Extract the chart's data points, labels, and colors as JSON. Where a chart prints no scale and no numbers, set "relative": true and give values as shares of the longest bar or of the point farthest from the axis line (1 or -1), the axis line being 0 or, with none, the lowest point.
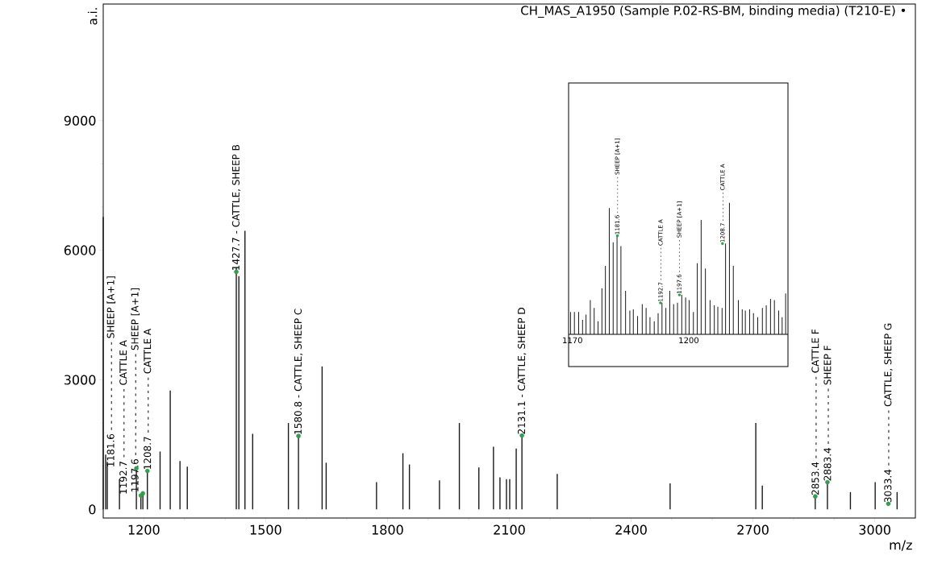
{
  "chart_data": [
    {
      "type": "bar",
      "title": "CH_MAS_A1950 (Sample P.02-RS-BM, binding media) (T210-E) •",
      "xlabel": "m/z",
      "ylabel": "a.i.",
      "xlim": [
        1100,
        3100
      ],
      "ylim": [
        -200,
        11700
      ],
      "xticks": [
        1200,
        1500,
        1800,
        2100,
        2400,
        2700,
        3000
      ],
      "yticks": [
        0,
        3000,
        6000,
        9000
      ],
      "marker": "circle",
      "series": [
        {
          "color": "#1a1a1a",
          "x": [
            1100,
            1106,
            1110,
            1140,
            1181.6,
            1192.7,
            1197.6,
            1208.7,
            1240,
            1265,
            1289,
            1307,
            1427.7,
            1434,
            1449,
            1468,
            1556,
            1580.8,
            1639,
            1649,
            1773,
            1838,
            1854,
            1928,
            1977,
            2025,
            2061,
            2077,
            2093,
            2101,
            2117,
            2131.1,
            2218,
            2496,
            2707,
            2723,
            2853.4,
            2883.4,
            2940,
            3001,
            3033.4,
            3055
          ],
          "values": [
            6770,
            1270,
            1100,
            700,
            950,
            320,
            370,
            890,
            1340,
            2750,
            1120,
            990,
            5600,
            5400,
            6450,
            1750,
            2000,
            1700,
            3310,
            1080,
            630,
            1300,
            1040,
            670,
            2000,
            970,
            1450,
            740,
            700,
            700,
            1410,
            1710,
            820,
            600,
            2000,
            550,
            300,
            630,
            400,
            630,
            null,
            400
          ]
        },
        {
          "type": "scatter",
          "color": "#2e9e4f",
          "x": [
            1181.6,
            1192.7,
            1197.6,
            1208.7,
            1427.7,
            1580.8,
            2131.1,
            2853.4,
            2883.4,
            3033.4
          ],
          "values": [
            950,
            320,
            370,
            890,
            5500,
            1700,
            1710,
            300,
            630,
            130
          ]
        }
      ],
      "annotations": [
        {
          "text": "1181.6 - - - - - - - - - - - - - - SHEEP [A+1]",
          "x": 1181.6,
          "y": 950
        },
        {
          "text": "1192.7 - - - - - - - - - - - CATTLE A",
          "x": 1192.7,
          "y": 320
        },
        {
          "text": "1197.6 - - - - - - - - - - - - - - - - SHEEP [A+1]",
          "x": 1197.6,
          "y": 370
        },
        {
          "text": "1208.7 - - - - - - - - - CATTLE A",
          "x": 1208.7,
          "y": 890
        },
        {
          "text": "1427.7 - CATTLE, SHEEP B",
          "x": 1427.7,
          "y": 5500
        },
        {
          "text": "1580.8 - CATTLE, SHEEP C",
          "x": 1580.8,
          "y": 1700
        },
        {
          "text": "2131.1 - CATTLE, SHEEP D",
          "x": 2131.1,
          "y": 1710
        },
        {
          "text": "2853.4 - - - - - - - - - - - - - CATTLE F",
          "x": 2853.4,
          "y": 300
        },
        {
          "text": "2883.4 - - - - - - - - - SHEEP F",
          "x": 2883.4,
          "y": 630
        },
        {
          "text": "3033.4 - - - - - - - - - CATTLE, SHEEP G",
          "x": 3033.4,
          "y": 130
        }
      ]
    },
    {
      "type": "bar",
      "relative": true,
      "tick_labels": "x",
      "xlim": [
        1169,
        1225.6
      ],
      "xticks": [
        1170,
        1200
      ],
      "marker": "circle",
      "series": [
        {
          "color": "#1a1a1a",
          "x": [
            1169.5,
            1170.5,
            1171.6,
            1172.6,
            1173.5,
            1174.6,
            1175.6,
            1176.6,
            1177.6,
            1178.5,
            1179.5,
            1180.5,
            1181.5,
            1182.5,
            1183.7,
            1184.8,
            1185.7,
            1186.8,
            1188.0,
            1189.0,
            1190.0,
            1191.1,
            1192.1,
            1193.1,
            1194.1,
            1195.1,
            1196.1,
            1197.1,
            1198.2,
            1199.2,
            1200.1,
            1201.2,
            1202.2,
            1203.2,
            1204.3,
            1205.5,
            1206.6,
            1207.5,
            1208.6,
            1209.5,
            1210.5,
            1211.5,
            1212.8,
            1213.8,
            1214.6,
            1215.7,
            1216.7,
            1217.8,
            1219.0,
            1220.0,
            1221.1,
            1222.1,
            1223.2,
            1224.1,
            1225.0
          ],
          "values": [
            0.17,
            0.17,
            0.17,
            0.11,
            0.15,
            0.26,
            0.2,
            0.1,
            0.35,
            0.52,
            0.96,
            0.7,
            0.75,
            0.67,
            0.33,
            0.18,
            0.19,
            0.14,
            0.23,
            0.2,
            0.13,
            0.1,
            0.16,
            0.24,
            0.2,
            0.33,
            0.23,
            0.24,
            0.3,
            0.28,
            0.26,
            0.17,
            0.54,
            0.87,
            0.5,
            0.26,
            0.22,
            0.21,
            0.2,
            0.69,
            1.0,
            0.52,
            0.26,
            0.19,
            0.18,
            0.19,
            0.16,
            0.13,
            0.2,
            0.22,
            0.27,
            0.26,
            0.18,
            0.13,
            0.31
          ]
        },
        {
          "type": "scatter",
          "color": "#2e9e4f",
          "x": [
            1181.6,
            1192.7,
            1197.6,
            1208.7
          ],
          "values": [
            0.75,
            0.24,
            0.3,
            0.69
          ]
        }
      ],
      "annotations": [
        {
          "text": "1181.6 - - - - - - - - - - SHEEP [A+1]",
          "x": 1181.6,
          "y": 0.75
        },
        {
          "text": "1192.7 - - - - - - - - - CATTLE A",
          "x": 1192.7,
          "y": 0.24
        },
        {
          "text": "1197.6 - - - - - - - - - SHEEP [A+1]",
          "x": 1197.6,
          "y": 0.3
        },
        {
          "text": "1208.7 - - - - - - - - CATTLE A",
          "x": 1208.7,
          "y": 0.69
        }
      ]
    }
  ]
}
